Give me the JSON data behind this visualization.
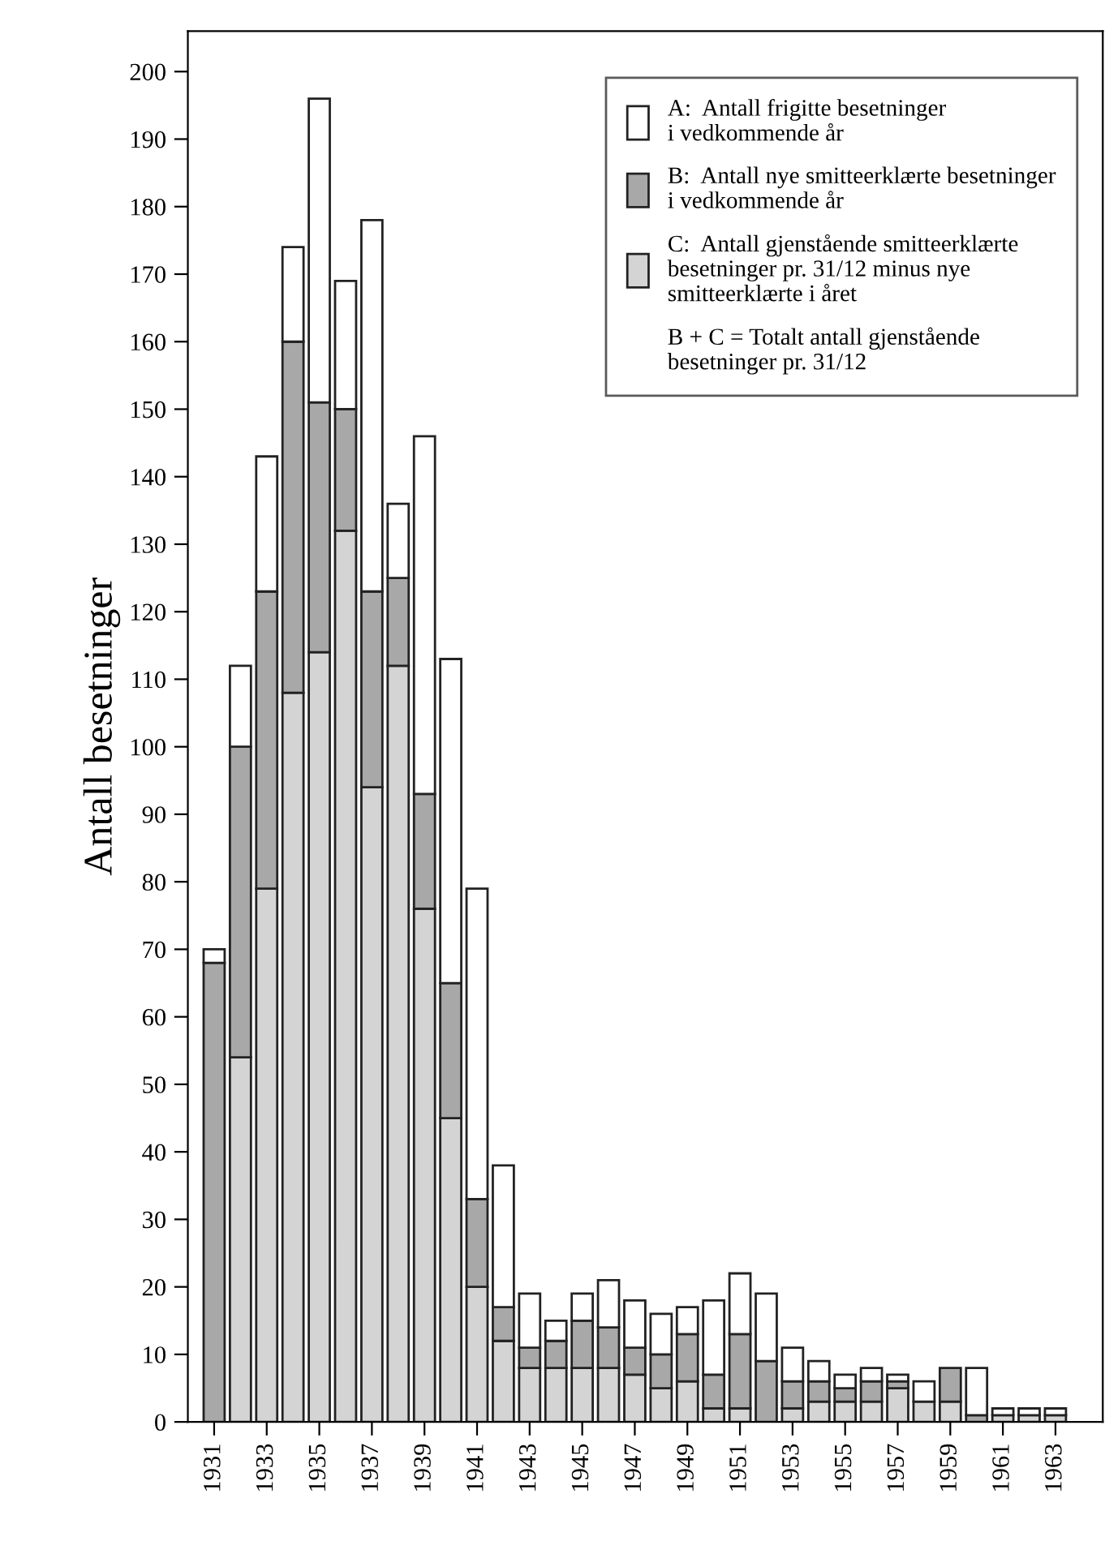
{
  "chart_data": {
    "type": "bar",
    "stacked": true,
    "ylabel": "Antall besetninger",
    "categories": [
      "1931",
      null,
      "1933",
      null,
      "1935",
      null,
      "1937",
      null,
      "1939",
      null,
      "1941",
      null,
      "1943",
      null,
      "1945",
      null,
      "1947",
      null,
      "1949",
      null,
      "1951",
      null,
      "1953",
      null,
      "1955",
      null,
      "1957",
      null,
      "1959",
      null,
      "1961",
      null,
      "1963"
    ],
    "series": [
      {
        "name": "C:  Antall gjenstående smitteerklærte\nbesetninger pr. 31/12 minus nye\nsmitteerklærte i året",
        "color": "#d4d4d4",
        "values": [
          0,
          54,
          79,
          108,
          114,
          132,
          94,
          112,
          76,
          45,
          20,
          12,
          8,
          8,
          8,
          8,
          7,
          5,
          6,
          2,
          2,
          0,
          2,
          3,
          3,
          3,
          5,
          3,
          3,
          0,
          1,
          1,
          1
        ]
      },
      {
        "name": "B:  Antall nye smitteerklærte besetninger\ni vedkommende år",
        "color": "#a8a8a8",
        "values": [
          68,
          46,
          44,
          52,
          37,
          18,
          29,
          13,
          17,
          20,
          13,
          5,
          3,
          4,
          7,
          6,
          4,
          5,
          7,
          5,
          11,
          9,
          4,
          3,
          2,
          3,
          1,
          0,
          5,
          1,
          0,
          0,
          0
        ]
      },
      {
        "name": "A:  Antall frigitte besetninger\ni vedkommende år",
        "color": "#ffffff",
        "values": [
          2,
          12,
          20,
          14,
          45,
          19,
          55,
          11,
          53,
          48,
          46,
          21,
          8,
          3,
          4,
          7,
          7,
          6,
          4,
          11,
          9,
          10,
          5,
          3,
          2,
          2,
          1,
          3,
          0,
          7,
          1,
          1,
          1
        ]
      }
    ],
    "annotations": [
      "B + C = Totalt antall gjenstående\nbesetninger pr. 31/12"
    ],
    "ylim": [
      0,
      206
    ],
    "yticks": [
      0,
      10,
      20,
      30,
      40,
      50,
      60,
      70,
      80,
      90,
      100,
      110,
      120,
      130,
      140,
      150,
      160,
      170,
      180,
      190,
      200
    ],
    "legend": "top right",
    "grid": false
  }
}
